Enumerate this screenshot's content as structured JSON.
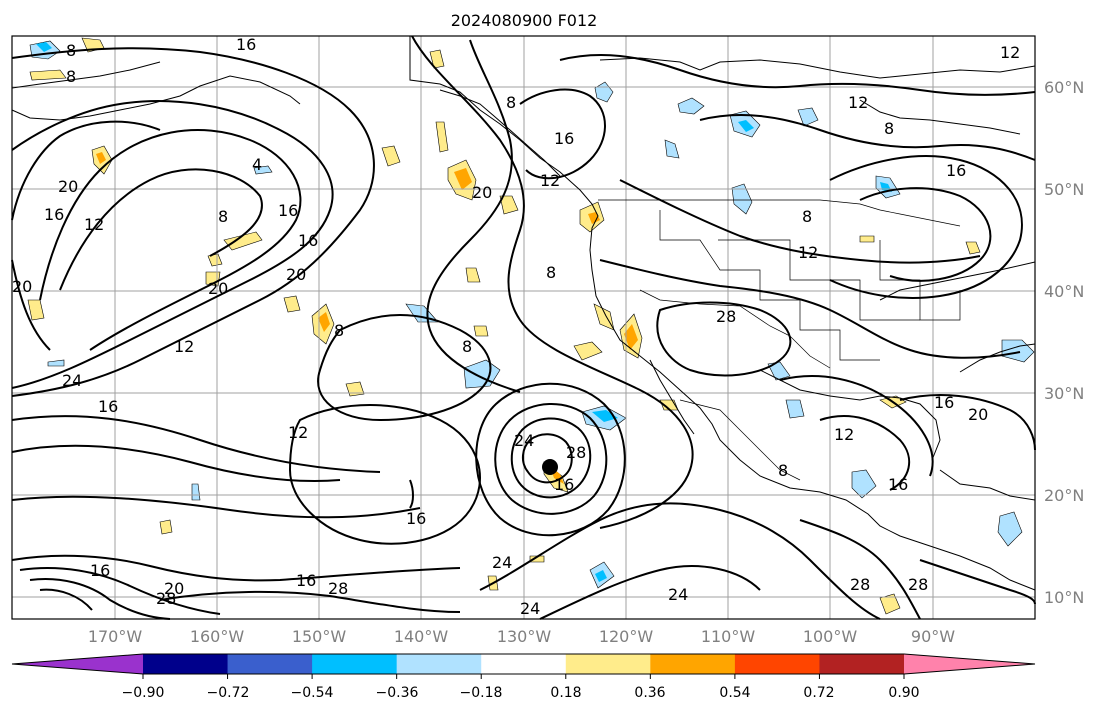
{
  "title": "2024080900 F012",
  "longitude_labels": [
    "170°W",
    "160°W",
    "150°W",
    "140°W",
    "130°W",
    "120°W",
    "110°W",
    "100°W",
    "90°W"
  ],
  "latitude_labels": [
    "60°N",
    "50°N",
    "40°N",
    "30°N",
    "20°N",
    "10°N"
  ],
  "colorbar": {
    "ticks": [
      "−0.90",
      "−0.72",
      "−0.54",
      "−0.36",
      "−0.18",
      "0.18",
      "0.36",
      "0.54",
      "0.72",
      "0.90"
    ],
    "colors": [
      "#9a32cd",
      "#00008b",
      "#3a5fcd",
      "#00bfff",
      "#b0e2ff",
      "#ffffff",
      "#ffec8b",
      "#ffa500",
      "#ff4500",
      "#b22222",
      "#ff82ab"
    ]
  },
  "contour_labels": [
    {
      "text": "8"
    },
    {
      "text": "8"
    },
    {
      "text": "12"
    },
    {
      "text": "16"
    },
    {
      "text": "20"
    },
    {
      "text": "16"
    },
    {
      "text": "12"
    },
    {
      "text": "20"
    },
    {
      "text": "8"
    },
    {
      "text": "16"
    },
    {
      "text": "16"
    },
    {
      "text": "20"
    },
    {
      "text": "20"
    },
    {
      "text": "12"
    },
    {
      "text": "24"
    },
    {
      "text": "16"
    },
    {
      "text": "8"
    },
    {
      "text": "8"
    },
    {
      "text": "16"
    },
    {
      "text": "8"
    },
    {
      "text": "20"
    },
    {
      "text": "8"
    },
    {
      "text": "12"
    },
    {
      "text": "8"
    },
    {
      "text": "12"
    },
    {
      "text": "28"
    },
    {
      "text": "24"
    },
    {
      "text": "28"
    },
    {
      "text": "16"
    },
    {
      "text": "24"
    },
    {
      "text": "12"
    },
    {
      "text": "16"
    },
    {
      "text": "8"
    },
    {
      "text": "16"
    },
    {
      "text": "20"
    },
    {
      "text": "16"
    },
    {
      "text": "12"
    },
    {
      "text": "8"
    },
    {
      "text": "16"
    },
    {
      "text": "28"
    },
    {
      "text": "28"
    },
    {
      "text": "24"
    },
    {
      "text": "24"
    },
    {
      "text": "28"
    },
    {
      "text": "28"
    },
    {
      "text": "16"
    },
    {
      "text": "12"
    },
    {
      "text": "20"
    },
    {
      "text": "16"
    },
    {
      "text": "4"
    }
  ]
}
